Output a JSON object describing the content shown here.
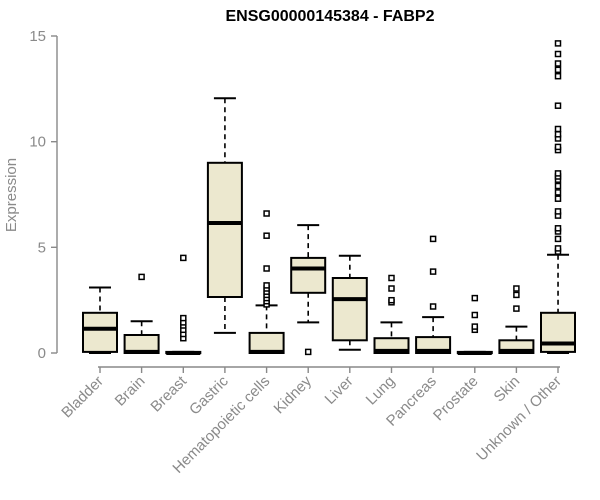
{
  "colors": {
    "box_fill": "#ece8cf",
    "box_stroke": "#000000",
    "axis": "#898989",
    "tick_label": "#8a8a8a",
    "title": "#000000",
    "background": "#ffffff"
  },
  "chart_data": {
    "type": "boxplot",
    "title": "ENSG00000145384 - FABP2",
    "xlabel": "",
    "ylabel": "Expression",
    "ylim": [
      0,
      15
    ],
    "yticks": [
      0,
      5,
      10,
      15
    ],
    "grid": false,
    "legend": "none",
    "categories": [
      "Bladder",
      "Brain",
      "Breast",
      "Gastric",
      "Hematopoietic cells",
      "Kidney",
      "Liver",
      "Lung",
      "Pancreas",
      "Prostate",
      "Skin",
      "Unknown / Other"
    ],
    "series": [
      {
        "name": "Bladder",
        "low": 0,
        "q1": 0.05,
        "median": 1.15,
        "q3": 1.9,
        "high": 3.1,
        "outliers": []
      },
      {
        "name": "Brain",
        "low": 0,
        "q1": 0,
        "median": 0.05,
        "q3": 0.85,
        "high": 1.5,
        "outliers": [
          3.6
        ]
      },
      {
        "name": "Breast",
        "low": 0,
        "q1": 0,
        "median": 0,
        "q3": 0.05,
        "high": 0.05,
        "outliers": [
          0.7,
          0.9,
          1.1,
          1.3,
          1.45,
          1.65,
          4.5
        ]
      },
      {
        "name": "Gastric",
        "low": 0.95,
        "q1": 2.65,
        "median": 6.15,
        "q3": 9.0,
        "high": 12.05,
        "outliers": []
      },
      {
        "name": "Hematopoietic cells",
        "low": 0,
        "q1": 0,
        "median": 0.05,
        "q3": 0.95,
        "high": 2.25,
        "outliers": [
          2.3,
          2.45,
          2.6,
          2.75,
          2.9,
          3.05,
          3.2,
          4.0,
          5.55,
          6.6
        ]
      },
      {
        "name": "Kidney",
        "low": 1.45,
        "q1": 2.85,
        "median": 4.0,
        "q3": 4.5,
        "high": 6.05,
        "outliers": [
          0.05
        ]
      },
      {
        "name": "Liver",
        "low": 0.15,
        "q1": 0.6,
        "median": 2.55,
        "q3": 3.55,
        "high": 4.6,
        "outliers": []
      },
      {
        "name": "Lung",
        "low": 0,
        "q1": 0,
        "median": 0.1,
        "q3": 0.7,
        "high": 1.45,
        "outliers": [
          2.4,
          2.5,
          3.05,
          3.55
        ]
      },
      {
        "name": "Pancreas",
        "low": 0,
        "q1": 0,
        "median": 0.1,
        "q3": 0.75,
        "high": 1.7,
        "outliers": [
          2.2,
          3.85,
          5.4
        ]
      },
      {
        "name": "Prostate",
        "low": 0,
        "q1": 0,
        "median": 0,
        "q3": 0.05,
        "high": 0.05,
        "outliers": [
          1.1,
          1.25,
          1.8,
          2.6
        ]
      },
      {
        "name": "Skin",
        "low": 0,
        "q1": 0,
        "median": 0.1,
        "q3": 0.6,
        "high": 1.25,
        "outliers": [
          2.1,
          2.75,
          3.05
        ]
      },
      {
        "name": "Unknown / Other",
        "low": 0,
        "q1": 0.05,
        "median": 0.45,
        "q3": 1.9,
        "high": 4.65,
        "outliers": [
          4.8,
          4.95,
          5.4,
          5.75,
          5.9,
          6.5,
          6.7,
          7.3,
          7.6,
          7.9,
          8.2,
          8.35,
          8.5,
          9.6,
          9.75,
          10.15,
          10.35,
          10.6,
          11.7,
          13.1,
          13.4,
          13.7,
          14.15,
          14.65
        ]
      }
    ]
  }
}
